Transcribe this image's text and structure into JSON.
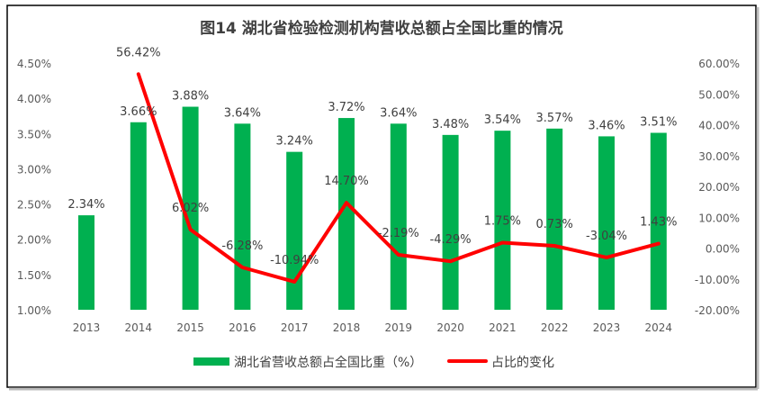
{
  "chart_data": {
    "type": "bar+line",
    "title": "图14 湖北省检验检测机构营收总额占全国比重的情况",
    "categories": [
      "2013",
      "2014",
      "2015",
      "2016",
      "2017",
      "2018",
      "2019",
      "2020",
      "2021",
      "2022",
      "2023",
      "2024"
    ],
    "series": [
      {
        "name": "湖北省营收总额占全国比重（%）",
        "type": "bar",
        "axis": "left",
        "color": "#00B050",
        "values": [
          2.34,
          3.66,
          3.88,
          3.64,
          3.24,
          3.72,
          3.64,
          3.48,
          3.54,
          3.57,
          3.46,
          3.51
        ],
        "labels": [
          "2.34%",
          "3.66%",
          "3.88%",
          "3.64%",
          "3.24%",
          "3.72%",
          "3.64%",
          "3.48%",
          "3.54%",
          "3.57%",
          "3.46%",
          "3.51%"
        ]
      },
      {
        "name": "占比的变化",
        "type": "line",
        "axis": "right",
        "color": "#FF0000",
        "values": [
          null,
          56.42,
          6.02,
          -6.28,
          -10.94,
          14.7,
          -2.19,
          -4.29,
          1.75,
          0.73,
          -3.04,
          1.43
        ],
        "labels": [
          "",
          "56.42%",
          "6.02%",
          "-6.28%",
          "-10.94%",
          "14.70%",
          "-2.19%",
          "-4.29%",
          "1.75%",
          "0.73%",
          "-3.04%",
          "1.43%"
        ]
      }
    ],
    "y_left": {
      "lim": [
        1.0,
        4.5
      ],
      "ticks": [
        "1.00%",
        "1.50%",
        "2.00%",
        "2.50%",
        "3.00%",
        "3.50%",
        "4.00%",
        "4.50%"
      ]
    },
    "y_right": {
      "lim": [
        -20,
        60
      ],
      "ticks": [
        "-20.00%",
        "-10.00%",
        "0.00%",
        "10.00%",
        "20.00%",
        "30.00%",
        "40.00%",
        "50.00%",
        "60.00%"
      ]
    },
    "grid": false,
    "legend": "bottom"
  }
}
